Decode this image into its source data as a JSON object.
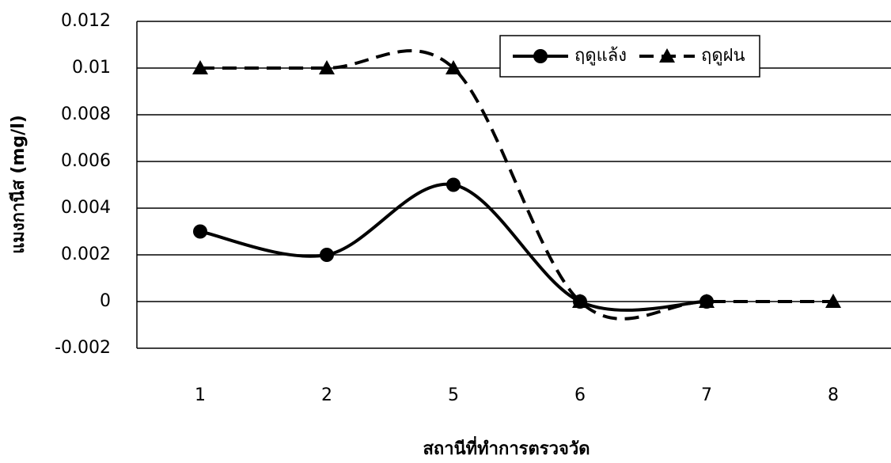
{
  "chart_data": {
    "type": "line",
    "x_label": "สถานีที่ทำการตรวจวัด",
    "y_label": "แมงกานีส (mg/l)",
    "categories": [
      "1",
      "2",
      "5",
      "6",
      "7",
      "8"
    ],
    "series": [
      {
        "name": "ฤดูแล้ง",
        "color": "#000000",
        "marker": "circle",
        "dash": false,
        "values": [
          0.003,
          0.002,
          0.005,
          0,
          0,
          null
        ]
      },
      {
        "name": "ฤดูฝน",
        "color": "#000000",
        "marker": "triangle",
        "dash": true,
        "values": [
          0.01,
          0.01,
          0.01,
          0,
          0,
          0
        ]
      }
    ],
    "ylim": [
      -0.002,
      0.012
    ],
    "yticks": [
      -0.002,
      0,
      0.002,
      0.004,
      0.006,
      0.008,
      0.01,
      0.012
    ],
    "grid": true,
    "smooth": true,
    "legend": "upper right"
  }
}
